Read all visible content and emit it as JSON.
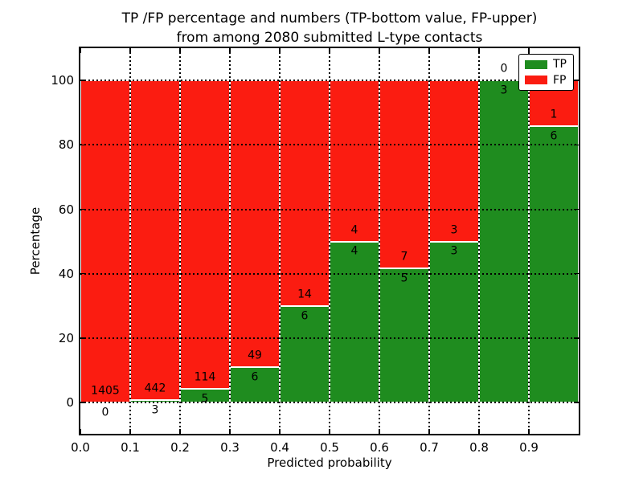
{
  "chart_data": {
    "type": "bar",
    "stacked": true,
    "title_lines": [
      "TP /FP percentage and numbers (TP-bottom value, FP-upper)",
      "from among 2080 submitted L-type contacts"
    ],
    "xlabel": "Predicted probability",
    "ylabel": "Percentage",
    "total_contacts": 2080,
    "xlim": [
      0.0,
      1.0
    ],
    "ylim": [
      -9.7,
      110
    ],
    "bin_width": 0.1,
    "x_tick_labels": [
      "0.0",
      "0.1",
      "0.2",
      "0.3",
      "0.4",
      "0.5",
      "0.6",
      "0.7",
      "0.8",
      "0.9"
    ],
    "y_tick_values": [
      0,
      20,
      40,
      60,
      80,
      100
    ],
    "grid": true,
    "legend": {
      "position": "upper right",
      "entries": [
        {
          "label": "TP",
          "color": "#1f8c1f"
        },
        {
          "label": "FP",
          "color": "#fb1c11"
        }
      ]
    },
    "bins": [
      {
        "range": "0.0-0.1",
        "tp_count": 0,
        "fp_count": 1405,
        "tp_pct": 0.0,
        "fp_pct": 100.0
      },
      {
        "range": "0.1-0.2",
        "tp_count": 3,
        "fp_count": 442,
        "tp_pct": 0.674,
        "fp_pct": 99.326
      },
      {
        "range": "0.2-0.3",
        "tp_count": 5,
        "fp_count": 114,
        "tp_pct": 4.202,
        "fp_pct": 95.798
      },
      {
        "range": "0.3-0.4",
        "tp_count": 6,
        "fp_count": 49,
        "tp_pct": 10.909,
        "fp_pct": 89.091
      },
      {
        "range": "0.4-0.5",
        "tp_count": 6,
        "fp_count": 14,
        "tp_pct": 30.0,
        "fp_pct": 70.0
      },
      {
        "range": "0.5-0.6",
        "tp_count": 4,
        "fp_count": 4,
        "tp_pct": 50.0,
        "fp_pct": 50.0
      },
      {
        "range": "0.6-0.7",
        "tp_count": 5,
        "fp_count": 7,
        "tp_pct": 41.667,
        "fp_pct": 58.333
      },
      {
        "range": "0.7-0.8",
        "tp_count": 3,
        "fp_count": 3,
        "tp_pct": 50.0,
        "fp_pct": 50.0
      },
      {
        "range": "0.8-0.9",
        "tp_count": 3,
        "fp_count": 0,
        "tp_pct": 100.0,
        "fp_pct": 0.0
      },
      {
        "range": "0.9-1.0",
        "tp_count": 6,
        "fp_count": 1,
        "tp_pct": 85.714,
        "fp_pct": 14.286
      }
    ]
  },
  "colors": {
    "tp": "#1f8c1f",
    "fp": "#fb1c11",
    "grid": "#000000",
    "background": "#ffffff",
    "text": "#000000"
  }
}
